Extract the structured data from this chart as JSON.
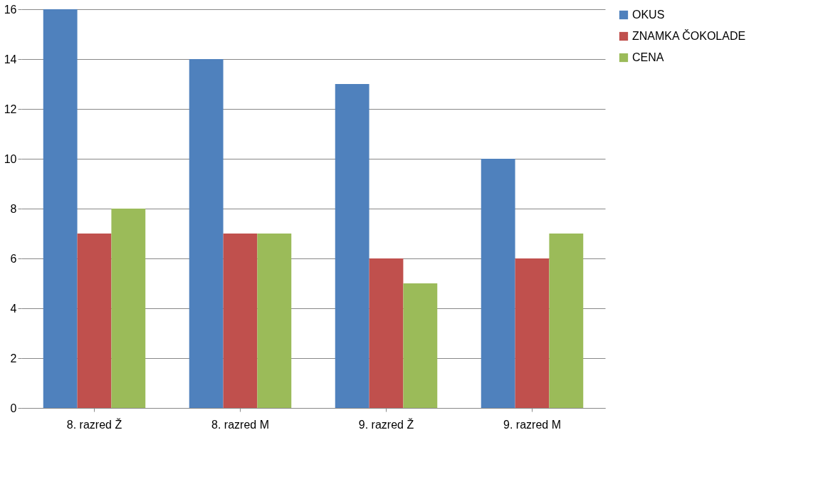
{
  "chart_data": {
    "type": "bar",
    "categories": [
      "8. razred Ž",
      "8. razred M",
      "9. razred Ž",
      "9. razred M"
    ],
    "series": [
      {
        "name": "OKUS",
        "color": "#4f81bd",
        "values": [
          16,
          14,
          13,
          10
        ]
      },
      {
        "name": "ZNAMKA ČOKOLADE",
        "color": "#c0504d",
        "values": [
          7,
          7,
          6,
          6
        ]
      },
      {
        "name": "CENA",
        "color": "#9bbb59",
        "values": [
          8,
          7,
          5,
          7
        ]
      }
    ],
    "ylim": [
      0,
      16
    ],
    "yticks": [
      0,
      2,
      4,
      6,
      8,
      10,
      12,
      14,
      16
    ],
    "grid": "y",
    "legend": "right"
  }
}
